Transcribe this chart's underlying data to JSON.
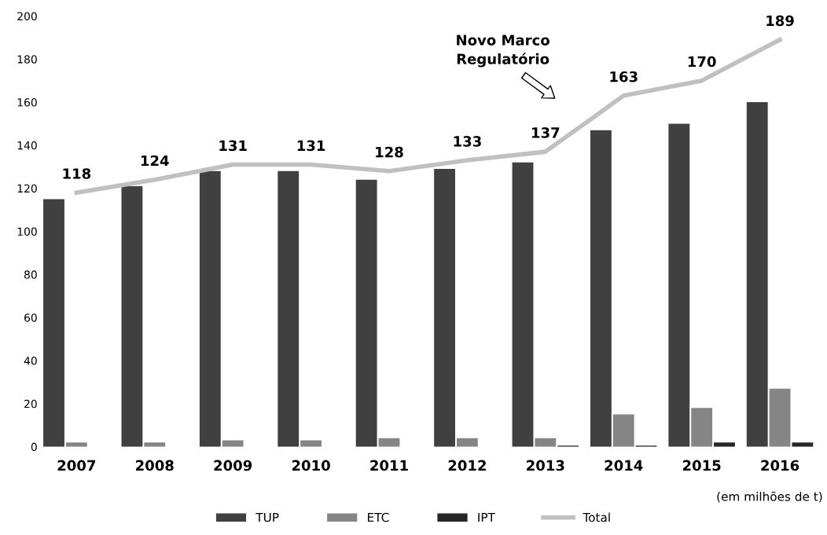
{
  "chart_data": {
    "type": "bar",
    "categories": [
      "2007",
      "2008",
      "2009",
      "2010",
      "2011",
      "2012",
      "2013",
      "2014",
      "2015",
      "2016"
    ],
    "series": [
      {
        "name": "TUP",
        "color": "#404040",
        "values": [
          115,
          121,
          128,
          128,
          124,
          129,
          132,
          147,
          150,
          160
        ]
      },
      {
        "name": "ETC",
        "color": "#858585",
        "values": [
          2,
          2,
          3,
          3,
          4,
          4,
          4,
          15,
          18,
          27
        ]
      },
      {
        "name": "IPT",
        "color": "#262626",
        "values": [
          0,
          0,
          0,
          0,
          0,
          0,
          0.5,
          0.5,
          2,
          2
        ]
      },
      {
        "name": "Total",
        "type": "line",
        "color": "#c0c0c0",
        "values": [
          118,
          124,
          131,
          131,
          128,
          133,
          137,
          163,
          170,
          189
        ],
        "value_labels": [
          "118",
          "124",
          "131",
          "131",
          "128",
          "133",
          "137",
          "163",
          "170",
          "189"
        ]
      }
    ],
    "ylim": [
      0,
      200
    ],
    "yticks": [
      0,
      20,
      40,
      60,
      80,
      100,
      120,
      140,
      160,
      180,
      200
    ],
    "grid": false,
    "legend": "bottom",
    "annotations": [
      "Novo Marco\nRegulatório",
      "(em milhões de t)"
    ]
  }
}
